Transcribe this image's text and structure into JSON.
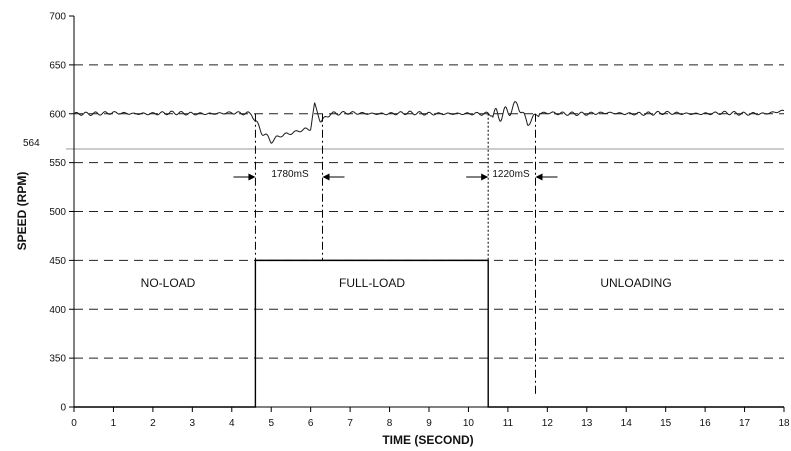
{
  "chart_data": {
    "type": "line",
    "xlabel": "TIME (SECOND)",
    "ylabel": "SPEED (RPM)",
    "xlim": [
      0,
      18
    ],
    "x_ticks": [
      "0",
      "1",
      "2",
      "3",
      "4",
      "5",
      "6",
      "7",
      "8",
      "9",
      "10",
      "11",
      "12",
      "13",
      "14",
      "15",
      "16",
      "17",
      "18"
    ],
    "y_ticks": [
      "0",
      "350",
      "400",
      "450",
      "500",
      "550",
      "600",
      "650",
      "700"
    ],
    "y_reference": {
      "label": "564",
      "value": 564
    },
    "grid": "horizontal dashed",
    "speed_series": {
      "x": [
        0,
        0.5,
        1,
        1.5,
        2,
        2.5,
        3,
        3.5,
        4,
        4.5,
        4.6,
        4.75,
        5,
        5.25,
        5.5,
        5.75,
        6,
        6.1,
        6.25,
        6.5,
        7,
        7.5,
        8,
        8.5,
        9,
        9.5,
        10,
        10.5,
        10.75,
        11,
        11.25,
        11.5,
        11.75,
        12,
        12.5,
        13,
        13.5,
        14,
        14.5,
        15,
        15.5,
        16,
        16.5,
        17,
        17.5,
        18
      ],
      "y": [
        600,
        600,
        601,
        600,
        600,
        601,
        600,
        600,
        601,
        600,
        592,
        582,
        572,
        578,
        580,
        583,
        585,
        610,
        592,
        600,
        601,
        600,
        600,
        601,
        600,
        600,
        600,
        600,
        598,
        602,
        610,
        590,
        600,
        601,
        600,
        600,
        601,
        600,
        600,
        601,
        600,
        600,
        601,
        600,
        600,
        603
      ]
    },
    "load_step": {
      "x": [
        0,
        4.6,
        4.6,
        10.5,
        10.5,
        18
      ],
      "level": [
        "low",
        "low",
        "high",
        "high",
        "low",
        "low"
      ]
    },
    "events": [
      4.6,
      6.3,
      10.5,
      11.7
    ],
    "regions": [
      "NO-LOAD",
      "FULL-LOAD",
      "UNLOADING"
    ],
    "annotations": [
      "1780mS",
      "1220mS"
    ]
  },
  "colors": {
    "line": "#1a1a1a",
    "grid": "#222222",
    "ref": "#999999"
  }
}
